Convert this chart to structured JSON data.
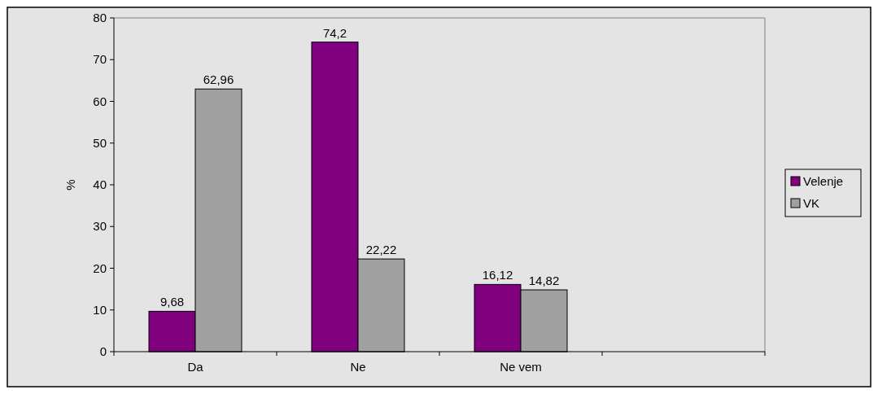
{
  "chart_data": {
    "type": "bar",
    "ylabel": "%",
    "categories": [
      "Da",
      "Ne",
      "Ne vem",
      null
    ],
    "series": [
      {
        "name": "Velenje",
        "color": "#800080",
        "values": [
          9.68,
          74.2,
          16.12,
          null
        ],
        "value_labels": [
          "9,68",
          "74,2",
          "16,12",
          null
        ]
      },
      {
        "name": "VK",
        "color": "#a0a0a0",
        "values": [
          62.96,
          22.22,
          14.82,
          null
        ],
        "value_labels": [
          "62,96",
          "22,22",
          "14,82",
          null
        ]
      }
    ],
    "ylim": [
      0,
      80
    ],
    "yticks": [
      0,
      10,
      20,
      30,
      40,
      50,
      60,
      70,
      80
    ],
    "grid": false,
    "legend": "right"
  }
}
